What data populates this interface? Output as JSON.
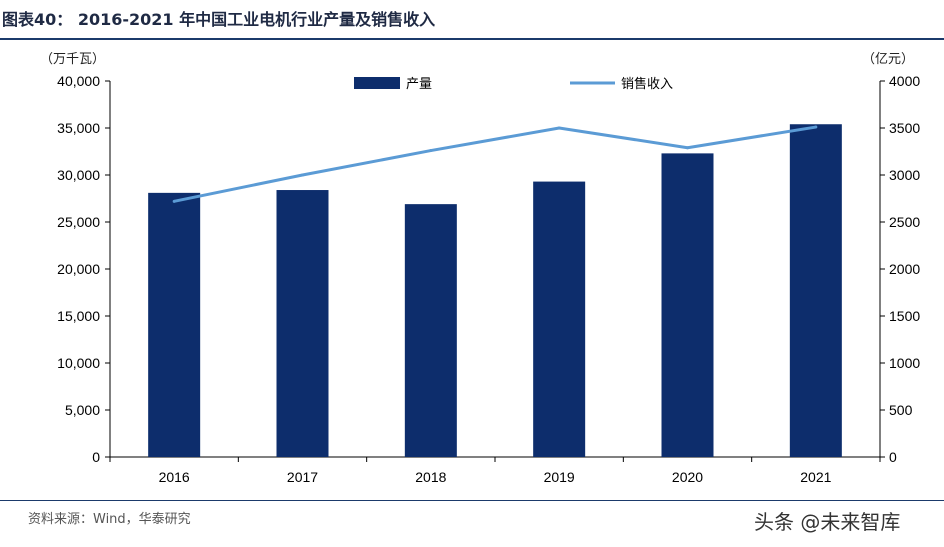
{
  "title": "图表40： 2016-2021 年中国工业电机行业产量及销售收入",
  "unit_left": "（万千瓦）",
  "unit_right": "（亿元）",
  "source": "资料来源：Wind，华泰研究",
  "watermark": "头条 @未来智库",
  "colors": {
    "bar": "#0d2d6c",
    "line": "#5b9bd5",
    "rule": "#1b3a6b"
  },
  "chart_data": {
    "type": "bar",
    "categories": [
      "2016",
      "2017",
      "2018",
      "2019",
      "2020",
      "2021"
    ],
    "series": [
      {
        "name": "产量",
        "type": "bar",
        "axis": "left",
        "values": [
          28100,
          28400,
          26900,
          29300,
          32300,
          35400
        ]
      },
      {
        "name": "销售收入",
        "type": "line",
        "axis": "right",
        "values": [
          2720,
          3000,
          3260,
          3500,
          3290,
          3510
        ]
      }
    ],
    "y_left": {
      "min": 0,
      "max": 40000,
      "ticks": [
        0,
        5000,
        10000,
        15000,
        20000,
        25000,
        30000,
        35000,
        40000
      ],
      "tick_labels": [
        "0",
        "5,000",
        "10,000",
        "15,000",
        "20,000",
        "25,000",
        "30,000",
        "35,000",
        "40,000"
      ]
    },
    "y_right": {
      "min": 0,
      "max": 4000,
      "ticks": [
        0,
        500,
        1000,
        1500,
        2000,
        2500,
        3000,
        3500,
        4000
      ],
      "tick_labels": [
        "0",
        "500",
        "1000",
        "1500",
        "2000",
        "2500",
        "3000",
        "3500",
        "4000"
      ]
    },
    "grid": false,
    "legend": "top-center"
  }
}
